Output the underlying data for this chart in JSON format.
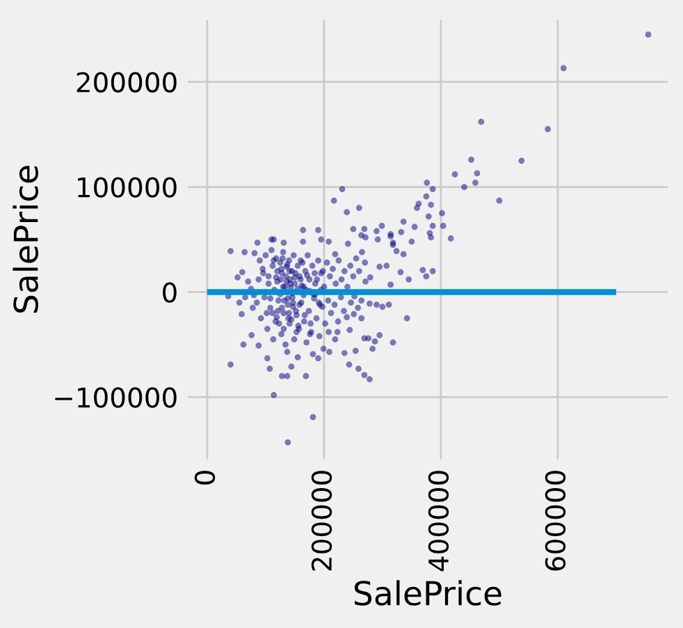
{
  "chart_data": {
    "type": "scatter",
    "xlabel": "SalePrice",
    "ylabel": "SalePrice",
    "xlim": [
      -38000,
      793000
    ],
    "ylim": [
      -162000,
      262000
    ],
    "xticks": [
      0,
      200000,
      400000,
      600000
    ],
    "yticks": [
      -100000,
      0,
      100000,
      200000
    ],
    "grid": true,
    "series": [
      {
        "marker": "circle",
        "color": "#000080",
        "x": [
          755000,
          610000,
          469000,
          583000,
          538000,
          452000,
          424000,
          462000,
          440000,
          459000,
          500000,
          376000,
          386000,
          375000,
          362000,
          359000,
          383000,
          379000,
          402000,
          404000,
          386000,
          417000,
          381000,
          383000,
          355000,
          350000,
          336000,
          332000,
          318000,
          336000,
          324000,
          369000,
          386000,
          231000,
          217000,
          239000,
          260000,
          250000,
          269000,
          290000,
          299000,
          314000,
          264000,
          271000,
          292000,
          241000,
          219000,
          190000,
          164000,
          195000,
          208000,
          164000,
          110000,
          114000,
          131000,
          86000,
          40000,
          64000,
          81000,
          36000,
          52000,
          60000,
          55000,
          59000,
          40000,
          62000,
          76000,
          88000,
          103000,
          107000,
          114000,
          128000,
          137000,
          137000,
          169000,
          144000,
          181000,
          138000,
          155000,
          181000,
          190000,
          199000,
          209000,
          219000,
          235000,
          243000,
          259000,
          269000,
          278000,
          254000,
          269000,
          276000,
          283000,
          295000,
          287000,
          318000,
          342000,
          251000,
          264000,
          244000,
          223000,
          208000,
          278000,
          290000,
          300000,
          311000,
          314000,
          331000,
          345000,
          375000,
          318000,
          314000,
          307000,
          295000,
          279000,
          271000,
          90000,
          95000,
          100000,
          105000,
          110000,
          112000,
          118000,
          120000,
          125000,
          128000,
          130000,
          133000,
          136000,
          140000,
          142000,
          145000,
          148000,
          150000,
          155000,
          158000,
          160000,
          165000,
          168000,
          172000,
          175000,
          180000,
          185000,
          190000,
          195000,
          200000,
          205000,
          210000,
          215000,
          220000,
          225000,
          230000,
          235000,
          240000,
          245000,
          250000,
          255000,
          260000,
          265000,
          270000,
          85000,
          92000,
          98000,
          103000,
          108000,
          113000,
          117000,
          122000,
          127000,
          131000,
          134000,
          138000,
          141000,
          146000,
          149000,
          153000,
          157000,
          161000,
          166000,
          170000,
          174000,
          178000,
          183000,
          187000,
          192000,
          197000,
          202000,
          207000,
          212000,
          218000,
          224000,
          229000,
          234000,
          239000,
          246000,
          252000,
          258000,
          264000,
          75000,
          80000,
          115000,
          125000,
          135000,
          145000,
          155000,
          165000,
          175000,
          185000,
          195000,
          100000,
          70000,
          78000,
          88000,
          65000,
          130000,
          138000,
          142000,
          147000,
          135000,
          128000,
          152000,
          120000,
          140000,
          160000,
          105000,
          112000,
          118000,
          123000,
          127000,
          132000,
          136000,
          139000,
          143000,
          147000,
          151000,
          156000,
          162000,
          167000,
          171000,
          176000,
          182000,
          188000,
          193000,
          198000,
          108000,
          114000,
          121000,
          126000,
          131000,
          137000,
          144000,
          150000,
          158000,
          163000,
          169000,
          177000,
          184000,
          191000,
          96000,
          102000,
          119000,
          129000,
          141000,
          153000
        ],
        "values": [
          245000,
          213000,
          162000,
          155000,
          125000,
          126000,
          112000,
          113000,
          100000,
          104000,
          87000,
          104000,
          98000,
          91000,
          84000,
          80000,
          83000,
          72000,
          75000,
          63000,
          63000,
          51000,
          56000,
          52000,
          62000,
          48000,
          67000,
          57000,
          47000,
          36000,
          39000,
          21000,
          20000,
          98000,
          87000,
          76000,
          80000,
          60000,
          60000,
          58000,
          63000,
          55000,
          54000,
          52000,
          50000,
          46000,
          36000,
          59000,
          59000,
          50000,
          48000,
          48000,
          50000,
          50000,
          47000,
          47000,
          39000,
          38000,
          37000,
          -4000,
          14000,
          19000,
          -10000,
          -21000,
          -69000,
          -50000,
          -41000,
          -51000,
          -63000,
          -73000,
          -98000,
          -80000,
          -80000,
          -57000,
          -80000,
          -71000,
          -119000,
          -143000,
          -62000,
          -59000,
          -63000,
          -54000,
          -57000,
          -45000,
          -58000,
          -69000,
          -73000,
          -79000,
          -83000,
          -56000,
          -44000,
          -44000,
          -54000,
          -41000,
          -47000,
          -48000,
          -25000,
          -21000,
          -25000,
          -36000,
          -38000,
          -38000,
          -11000,
          -12000,
          -14000,
          -12000,
          7000,
          19000,
          12000,
          15000,
          45000,
          53000,
          25000,
          24000,
          14000,
          10000,
          30000,
          22000,
          35000,
          15000,
          40000,
          25000,
          32000,
          10000,
          28000,
          18000,
          38000,
          5000,
          24000,
          30000,
          12000,
          20000,
          35000,
          8000,
          25000,
          15000,
          30000,
          5000,
          20000,
          35000,
          12000,
          25000,
          8000,
          30000,
          18000,
          5000,
          28000,
          15000,
          22000,
          8000,
          30000,
          12000,
          20000,
          5000,
          25000,
          15000,
          32000,
          20000,
          38000,
          28000,
          -10000,
          -25000,
          -5000,
          -35000,
          -15000,
          -45000,
          -28000,
          -8000,
          -40000,
          -20000,
          -50000,
          -12000,
          -30000,
          -5000,
          -45000,
          -22000,
          -35000,
          -10000,
          -28000,
          -48000,
          -18000,
          -38000,
          -6000,
          -25000,
          -42000,
          -14000,
          -30000,
          -8000,
          -20000,
          -12000,
          -28000,
          -5000,
          -18000,
          -24000,
          -10000,
          -4000,
          -15000,
          -8000,
          3000,
          -3000,
          2000,
          -2000,
          0,
          -1000,
          3000,
          -3000,
          1000,
          -2000,
          2000,
          0,
          10000,
          -15000,
          12000,
          -5000,
          5000,
          -6000,
          8000,
          -10000,
          15000,
          -15000,
          -18000,
          20000,
          -20000,
          12000,
          8000,
          -20000,
          14000,
          -30000,
          22000,
          -8000,
          10000,
          -25000,
          4000,
          -14000,
          18000,
          -32000,
          6000,
          -22000,
          16000,
          -40000,
          -2000,
          12000,
          -12000,
          20000,
          -6000,
          30000,
          -18000,
          12000,
          -35000,
          26000,
          -26000,
          14000,
          -12000,
          28000,
          2000,
          -30000,
          18000,
          -10000,
          18000,
          -20000,
          -24000,
          32000,
          20000,
          -38000
        ]
      },
      {
        "type": "line",
        "line_style": "solid",
        "color": "#008fd5",
        "x": [
          0,
          700000
        ],
        "values": [
          0,
          0
        ]
      }
    ]
  }
}
